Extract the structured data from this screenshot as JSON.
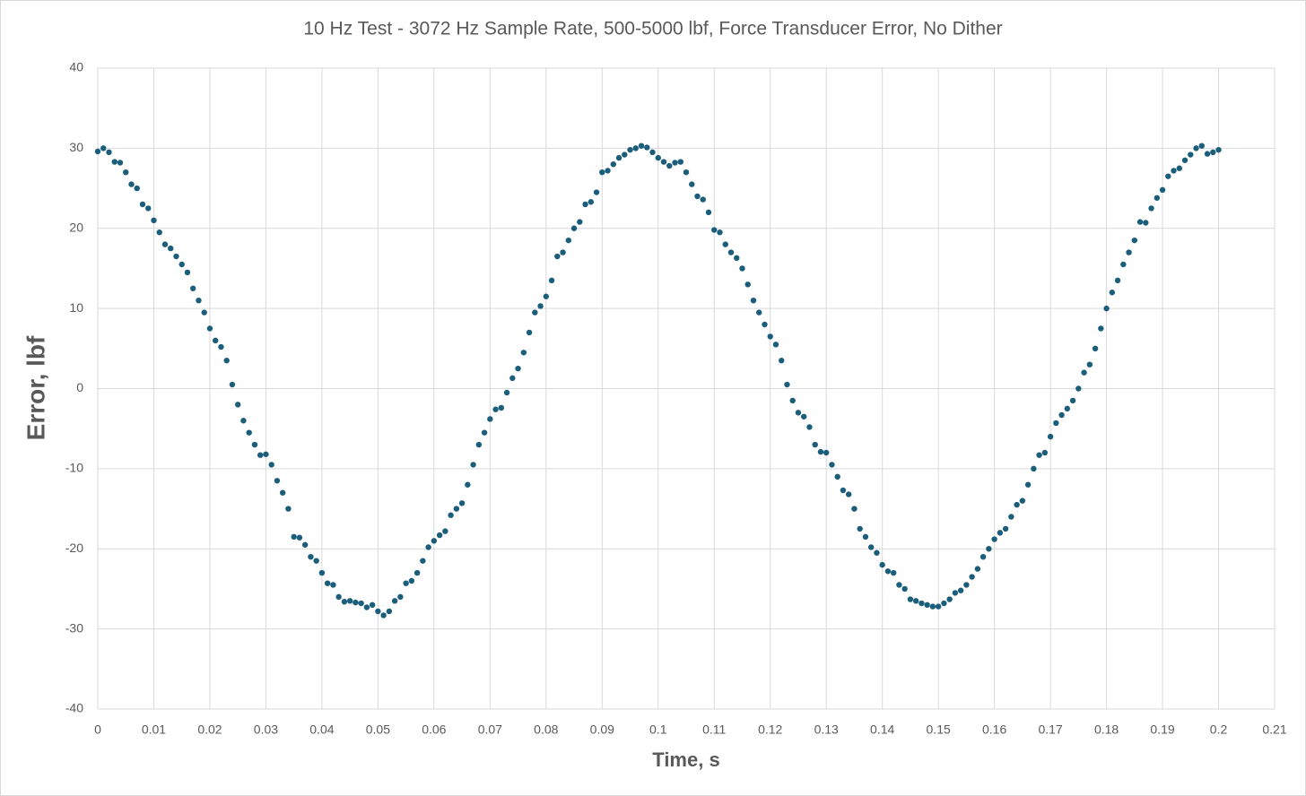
{
  "chart_data": {
    "type": "scatter",
    "title": "10 Hz Test - 3072 Hz Sample Rate, 500-5000 lbf, Force Transducer Error, No Dither",
    "xlabel": "Time, s",
    "ylabel": "Error, lbf",
    "xlim": [
      0,
      0.21
    ],
    "ylim": [
      -40,
      40
    ],
    "xticks": [
      0,
      0.01,
      0.02,
      0.03,
      0.04,
      0.05,
      0.06,
      0.07,
      0.08,
      0.09,
      0.1,
      0.11,
      0.12,
      0.13,
      0.14,
      0.15,
      0.16,
      0.17,
      0.18,
      0.19,
      0.2,
      0.21
    ],
    "yticks": [
      -40,
      -30,
      -20,
      -10,
      0,
      10,
      20,
      30,
      40
    ],
    "grid": true,
    "color": "#1b5e7b",
    "x": [
      0,
      0.001,
      0.002,
      0.003,
      0.004,
      0.005,
      0.006,
      0.007,
      0.008,
      0.009,
      0.01,
      0.011,
      0.012,
      0.013,
      0.014,
      0.015,
      0.016,
      0.017,
      0.018,
      0.019,
      0.02,
      0.021,
      0.022,
      0.023,
      0.024,
      0.025,
      0.026,
      0.027,
      0.028,
      0.029,
      0.03,
      0.031,
      0.032,
      0.033,
      0.034,
      0.035,
      0.036,
      0.037,
      0.038,
      0.039,
      0.04,
      0.041,
      0.042,
      0.043,
      0.044,
      0.045,
      0.046,
      0.047,
      0.048,
      0.049,
      0.05,
      0.051,
      0.052,
      0.053,
      0.054,
      0.055,
      0.056,
      0.057,
      0.058,
      0.059,
      0.06,
      0.061,
      0.062,
      0.063,
      0.064,
      0.065,
      0.066,
      0.067,
      0.068,
      0.069,
      0.07,
      0.071,
      0.072,
      0.073,
      0.074,
      0.075,
      0.076,
      0.077,
      0.078,
      0.079,
      0.08,
      0.081,
      0.082,
      0.083,
      0.084,
      0.085,
      0.086,
      0.087,
      0.088,
      0.089,
      0.09,
      0.091,
      0.092,
      0.093,
      0.094,
      0.095,
      0.096,
      0.097,
      0.098,
      0.099,
      0.1,
      0.101,
      0.102,
      0.103,
      0.104,
      0.105,
      0.106,
      0.107,
      0.108,
      0.109,
      0.11,
      0.111,
      0.112,
      0.113,
      0.114,
      0.115,
      0.116,
      0.117,
      0.118,
      0.119,
      0.12,
      0.121,
      0.122,
      0.123,
      0.124,
      0.125,
      0.126,
      0.127,
      0.128,
      0.129,
      0.13,
      0.131,
      0.132,
      0.133,
      0.134,
      0.135,
      0.136,
      0.137,
      0.138,
      0.139,
      0.14,
      0.141,
      0.142,
      0.143,
      0.144,
      0.145,
      0.146,
      0.147,
      0.148,
      0.149,
      0.15,
      0.151,
      0.152,
      0.153,
      0.154,
      0.155,
      0.156,
      0.157,
      0.158,
      0.159,
      0.16,
      0.161,
      0.162,
      0.163,
      0.164,
      0.165,
      0.166,
      0.167,
      0.168,
      0.169,
      0.17,
      0.171,
      0.172,
      0.173,
      0.174,
      0.175,
      0.176,
      0.177,
      0.178,
      0.179,
      0.18,
      0.181,
      0.182,
      0.183,
      0.184,
      0.185,
      0.186,
      0.187,
      0.188,
      0.189,
      0.19,
      0.191,
      0.192,
      0.193,
      0.194,
      0.195,
      0.196,
      0.197,
      0.198,
      0.199,
      0.2
    ],
    "values": [
      29.6,
      30,
      29.5,
      28.3,
      28.2,
      27,
      25.5,
      25,
      23,
      22.5,
      21,
      19.5,
      18,
      17.5,
      16.5,
      15.5,
      14.5,
      12.5,
      11,
      9.5,
      7.5,
      6,
      5.2,
      3.5,
      0.5,
      -2,
      -4,
      -5.5,
      -7,
      -8.3,
      -8.2,
      -9.5,
      -11.5,
      -13,
      -15,
      -18.5,
      -18.6,
      -19.5,
      -21,
      -21.5,
      -23,
      -24.3,
      -24.5,
      -26,
      -26.6,
      -26.5,
      -26.7,
      -26.8,
      -27.3,
      -27,
      -27.8,
      -28.3,
      -27.8,
      -26.5,
      -26,
      -24.3,
      -24,
      -23,
      -21.5,
      -19.8,
      -19,
      -18.3,
      -17.8,
      -15.8,
      -15,
      -14.3,
      -12,
      -9.5,
      -7,
      -5.5,
      -3.8,
      -2.6,
      -2.4,
      -0.5,
      1.3,
      2.5,
      4.5,
      7,
      9.5,
      10.3,
      11.5,
      13.5,
      16.5,
      17,
      18.5,
      20,
      20.8,
      23,
      23.3,
      24.5,
      27,
      27.2,
      28,
      28.8,
      29.2,
      29.8,
      30,
      30.3,
      30.1,
      29.5,
      28.8,
      28.3,
      27.8,
      28.2,
      28.3,
      27,
      25.5,
      24,
      23.6,
      22,
      19.8,
      19.5,
      18,
      17,
      16.3,
      15,
      13,
      11,
      9.5,
      8,
      6.5,
      5.5,
      3.5,
      0.5,
      -1.5,
      -3,
      -3.5,
      -4.8,
      -7,
      -7.9,
      -8,
      -9.5,
      -11,
      -12.7,
      -13.2,
      -15,
      -17.5,
      -18.5,
      -19.8,
      -20.5,
      -22,
      -22.8,
      -23,
      -24.5,
      -25,
      -26.3,
      -26.5,
      -26.8,
      -27,
      -27.2,
      -27.2,
      -26.8,
      -26.3,
      -25.5,
      -25.2,
      -24.5,
      -23.5,
      -22.5,
      -21,
      -20,
      -18.8,
      -18,
      -17.5,
      -16,
      -14.5,
      -14,
      -12,
      -10,
      -8.3,
      -8,
      -6,
      -4.3,
      -3.3,
      -2.5,
      -1.5,
      0,
      2,
      3,
      5,
      7.5,
      10,
      12,
      13.5,
      15.5,
      17,
      18.5,
      20.8,
      20.7,
      22.5,
      23.8,
      24.8,
      26.5,
      27.2,
      27.5,
      28.5,
      29.2,
      30,
      30.3,
      29.3,
      29.5,
      29.8
    ]
  }
}
